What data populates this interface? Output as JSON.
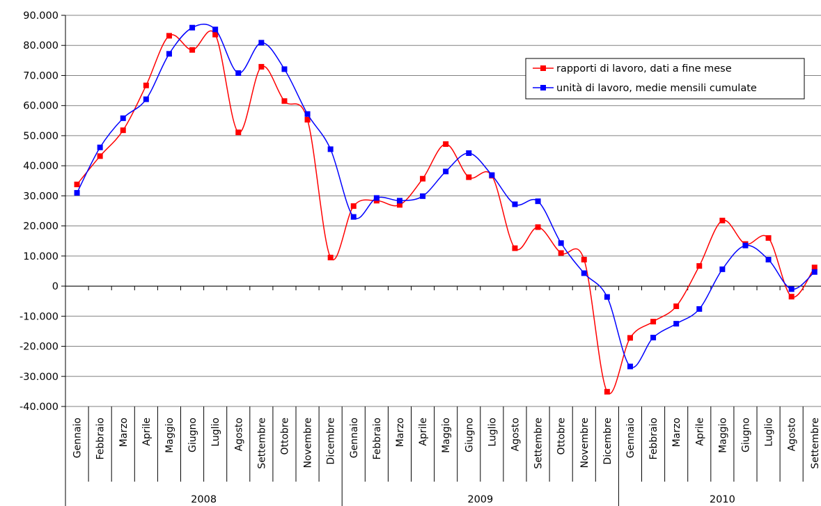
{
  "chart_data": {
    "type": "line",
    "y_ticks": [
      "90.000",
      "80.000",
      "70.000",
      "60.000",
      "50.000",
      "40.000",
      "30.000",
      "20.000",
      "10.000",
      "0",
      "-10.000",
      "-20.000",
      "-30.000",
      "-40.000"
    ],
    "ylim": [
      -40000,
      90000
    ],
    "grid": "horizontal",
    "legend_position": "top-right",
    "categories": [
      "Gennaio",
      "Febbraio",
      "Marzo",
      "Aprile",
      "Maggio",
      "Giugno",
      "Luglio",
      "Agosto",
      "Settembre",
      "Ottobre",
      "Novembre",
      "Dicembre",
      "Gennaio",
      "Febbraio",
      "Marzo",
      "Aprile",
      "Maggio",
      "Giugno",
      "Luglio",
      "Agosto",
      "Settembre",
      "Ottobre",
      "Novembre",
      "Dicembre",
      "Gennaio",
      "Febbraio",
      "Marzo",
      "Aprile",
      "Maggio",
      "Giugno",
      "Luglio",
      "Agosto",
      "Settembre"
    ],
    "groups": [
      {
        "label": "2008",
        "count": 12
      },
      {
        "label": "2009",
        "count": 12
      },
      {
        "label": "2010",
        "count": 9
      }
    ],
    "series": [
      {
        "name": "rapporti di lavoro, dati a fine mese",
        "color": "#ff0000",
        "values": [
          33800,
          43200,
          51800,
          66700,
          83200,
          78500,
          83600,
          51100,
          72900,
          61500,
          55300,
          9500,
          26600,
          28400,
          27000,
          35700,
          47200,
          36200,
          36700,
          12600,
          19600,
          11000,
          8800,
          -35100,
          -17200,
          -11800,
          -6700,
          6700,
          21800,
          14000,
          16000,
          -3500,
          6200
        ]
      },
      {
        "name": "unità di lavoro, medie mensili cumulate",
        "color": "#0000ff",
        "values": [
          31000,
          46100,
          55800,
          62100,
          77200,
          85900,
          85300,
          70800,
          80900,
          72100,
          57200,
          45500,
          23000,
          29300,
          28400,
          29900,
          38100,
          44200,
          36900,
          27200,
          28200,
          14300,
          4300,
          -3600,
          -26700,
          -17100,
          -12500,
          -7600,
          5600,
          13500,
          8800,
          -1000,
          4700
        ]
      }
    ]
  }
}
